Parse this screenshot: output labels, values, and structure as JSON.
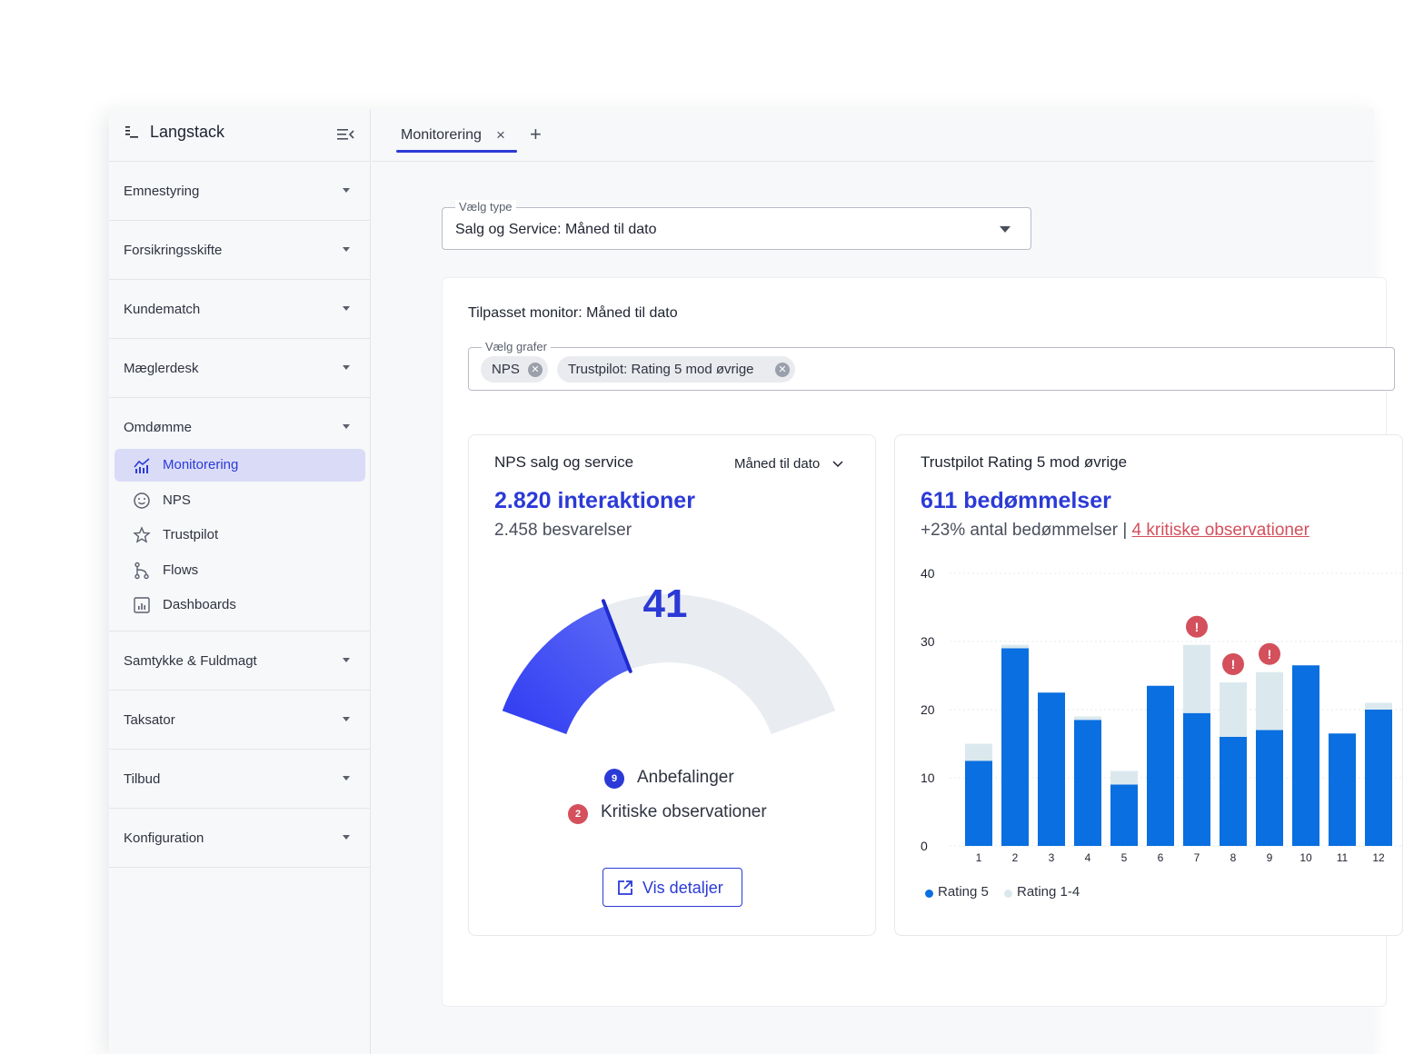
{
  "app": {
    "name": "Langstack"
  },
  "sidebar": {
    "groups_top": [
      {
        "label": "Emnestyring"
      },
      {
        "label": "Forsikringsskifte"
      },
      {
        "label": "Kundematch"
      },
      {
        "label": "Mæglerdesk"
      }
    ],
    "open_group": {
      "label": "Omdømme",
      "items": [
        {
          "label": "Monitorering",
          "icon": "chart-icon",
          "active": true
        },
        {
          "label": "NPS",
          "icon": "smiley-icon"
        },
        {
          "label": "Trustpilot",
          "icon": "star-icon"
        },
        {
          "label": "Flows",
          "icon": "flow-icon"
        },
        {
          "label": "Dashboards",
          "icon": "dashboard-icon"
        }
      ]
    },
    "groups_bottom": [
      {
        "label": "Samtykke & Fuldmagt"
      },
      {
        "label": "Taksator"
      },
      {
        "label": "Tilbud"
      },
      {
        "label": "Konfiguration"
      }
    ]
  },
  "tabs": {
    "active_label": "Monitorering",
    "close_glyph": "×",
    "add_glyph": "+"
  },
  "type_select": {
    "label": "Vælg type",
    "value": "Salg og Service: Måned til dato"
  },
  "panel": {
    "title": "Tilpasset monitor: Måned til dato",
    "graph_select": {
      "label": "Vælg grafer",
      "chips": [
        {
          "label": "NPS"
        },
        {
          "label": "Trustpilot: Rating 5 mod øvrige"
        }
      ]
    }
  },
  "nps_card": {
    "title": "NPS salg og service",
    "period": "Måned til dato",
    "interactions": "2.820 interaktioner",
    "responses": "2.458 besvarelser",
    "gauge_value": 41,
    "gauge_fraction": 0.35,
    "recommendations_count": "9",
    "recommendations_label": "Anbefalinger",
    "critical_count": "2",
    "critical_label": "Kritiske observationer",
    "details_button": "Vis detaljer",
    "colors": {
      "accent": "#2b3ad6",
      "critical": "#d4505c",
      "track": "#e9ecf1"
    }
  },
  "trustpilot_card": {
    "title": "Trustpilot Rating 5 mod øvrige",
    "reviews": "611 bedømmelser",
    "change": "+23% antal bedømmelser",
    "separator": "|",
    "critical": "4 kritiske observationer"
  },
  "chart_data": {
    "type": "bar",
    "stacked": true,
    "categories": [
      "1",
      "2",
      "3",
      "4",
      "5",
      "6",
      "7",
      "8",
      "9",
      "10",
      "11",
      "12"
    ],
    "series": [
      {
        "name": "Rating 5",
        "color": "#0a6fe0",
        "values": [
          12.5,
          29,
          22.5,
          18.5,
          9,
          23.5,
          19.5,
          16,
          17,
          26.5,
          16.5,
          20
        ]
      },
      {
        "name": "Rating 1-4",
        "color": "#dbe9ee",
        "values": [
          2.5,
          0.5,
          0,
          0.5,
          2,
          0,
          10,
          8,
          8.5,
          0,
          0,
          1
        ]
      }
    ],
    "critical_markers": [
      "7",
      "8",
      "9"
    ],
    "ylim": [
      0,
      40
    ],
    "yticks": [
      0,
      10,
      20,
      30,
      40
    ],
    "grid": true,
    "legend": "bottom-left"
  }
}
